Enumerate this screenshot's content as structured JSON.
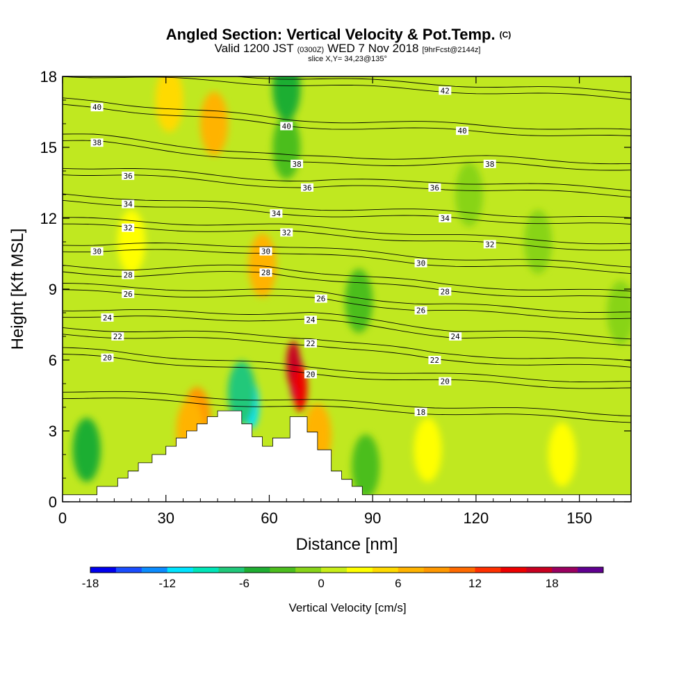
{
  "title": {
    "main": "Angled Section: Vertical Velocity & Pot.Temp.",
    "copyright": "(C)",
    "valid_prefix": "Valid 1200 JST",
    "utc": "(0300Z)",
    "valid_date": "WED 7 Nov 2018",
    "forecast": "[9hrFcst@2144z]",
    "slice": "slice X,Y= 34,23@135°"
  },
  "chart_data": {
    "type": "heatmap",
    "xlabel": "Distance [nm]",
    "ylabel": "Height [Kft MSL]",
    "xlim": [
      0,
      165
    ],
    "ylim": [
      0,
      18
    ],
    "xticks": [
      0,
      30,
      60,
      90,
      120,
      150
    ],
    "yticks": [
      0,
      3,
      6,
      9,
      12,
      15,
      18
    ],
    "colorbar": {
      "label": "Vertical Velocity [cm/s]",
      "min": -18,
      "max": 22,
      "step": 2,
      "ticks": [
        -18,
        -12,
        -6,
        0,
        6,
        12,
        18
      ],
      "colors": [
        "#0000ee",
        "#1a4dff",
        "#0b8cff",
        "#00e4ff",
        "#00e6b8",
        "#20c87a",
        "#1fae32",
        "#4cbe1e",
        "#88d418",
        "#c8ee18",
        "#ffff00",
        "#ffda00",
        "#ffb300",
        "#ff9800",
        "#ff6a00",
        "#ff3000",
        "#ee0000",
        "#c80020",
        "#9a0060",
        "#600090"
      ]
    },
    "terrain_top_kft": [
      [
        0,
        0.3
      ],
      [
        10,
        0.65
      ],
      [
        16,
        1.0
      ],
      [
        19,
        1.3
      ],
      [
        22,
        1.65
      ],
      [
        26,
        2.0
      ],
      [
        30,
        2.35
      ],
      [
        33,
        2.7
      ],
      [
        36,
        3.0
      ],
      [
        39,
        3.3
      ],
      [
        42,
        3.6
      ],
      [
        45,
        3.85
      ],
      [
        50,
        3.85
      ],
      [
        52,
        3.3
      ],
      [
        55,
        2.75
      ],
      [
        58,
        2.35
      ],
      [
        61,
        2.7
      ],
      [
        66,
        3.6
      ],
      [
        71,
        2.95
      ],
      [
        74,
        2.2
      ],
      [
        78,
        1.3
      ],
      [
        81,
        0.95
      ],
      [
        84,
        0.65
      ],
      [
        87,
        0.3
      ],
      [
        165,
        0.3
      ]
    ],
    "vertical_velocity_features": [
      {
        "x": 68,
        "y": 5.2,
        "value": 18
      },
      {
        "x": 67,
        "y": 5.8,
        "value": 16
      },
      {
        "x": 69,
        "y": 4.8,
        "value": 14
      },
      {
        "x": 55,
        "y": 4.1,
        "value": -12
      },
      {
        "x": 52,
        "y": 4.6,
        "value": -8
      },
      {
        "x": 39,
        "y": 3.5,
        "value": 8
      },
      {
        "x": 37,
        "y": 3.0,
        "value": 6
      },
      {
        "x": 74,
        "y": 2.8,
        "value": 6
      },
      {
        "x": 58,
        "y": 10.0,
        "value": 6
      },
      {
        "x": 44,
        "y": 16.0,
        "value": 6
      },
      {
        "x": 31,
        "y": 17.0,
        "value": 4
      },
      {
        "x": 7,
        "y": 2.2,
        "value": -6
      },
      {
        "x": 65,
        "y": 15.0,
        "value": -4
      },
      {
        "x": 65,
        "y": 17.5,
        "value": -6
      },
      {
        "x": 88,
        "y": 1.5,
        "value": -3
      },
      {
        "x": 86,
        "y": 8.5,
        "value": -3
      },
      {
        "x": 106,
        "y": 2.2,
        "value": 3
      },
      {
        "x": 138,
        "y": 11.0,
        "value": -2
      },
      {
        "x": 118,
        "y": 13.0,
        "value": -2
      },
      {
        "x": 145,
        "y": 2.0,
        "value": 3
      },
      {
        "x": 20,
        "y": 11.0,
        "value": 3
      },
      {
        "x": 162,
        "y": 8.0,
        "value": -2
      }
    ],
    "isotherm_labels": [
      {
        "value": "42",
        "x": 111,
        "y": 17.4
      },
      {
        "value": "40",
        "x": 10,
        "y": 16.7
      },
      {
        "value": "40",
        "x": 65,
        "y": 15.9
      },
      {
        "value": "40",
        "x": 116,
        "y": 15.7
      },
      {
        "value": "38",
        "x": 10,
        "y": 15.2
      },
      {
        "value": "38",
        "x": 68,
        "y": 14.3
      },
      {
        "value": "38",
        "x": 124,
        "y": 14.3
      },
      {
        "value": "36",
        "x": 19,
        "y": 13.8
      },
      {
        "value": "36",
        "x": 71,
        "y": 13.3
      },
      {
        "value": "36",
        "x": 108,
        "y": 13.3
      },
      {
        "value": "34",
        "x": 19,
        "y": 12.6
      },
      {
        "value": "34",
        "x": 62,
        "y": 12.2
      },
      {
        "value": "34",
        "x": 111,
        "y": 12.0
      },
      {
        "value": "32",
        "x": 19,
        "y": 11.6
      },
      {
        "value": "32",
        "x": 65,
        "y": 11.4
      },
      {
        "value": "32",
        "x": 124,
        "y": 10.9
      },
      {
        "value": "30",
        "x": 10,
        "y": 10.6
      },
      {
        "value": "30",
        "x": 59,
        "y": 10.6
      },
      {
        "value": "30",
        "x": 104,
        "y": 10.1
      },
      {
        "value": "28",
        "x": 19,
        "y": 9.6
      },
      {
        "value": "28",
        "x": 59,
        "y": 9.7
      },
      {
        "value": "28",
        "x": 111,
        "y": 8.9
      },
      {
        "value": "26",
        "x": 19,
        "y": 8.8
      },
      {
        "value": "26",
        "x": 75,
        "y": 8.6
      },
      {
        "value": "26",
        "x": 104,
        "y": 8.1
      },
      {
        "value": "24",
        "x": 13,
        "y": 7.8
      },
      {
        "value": "24",
        "x": 72,
        "y": 7.7
      },
      {
        "value": "24",
        "x": 114,
        "y": 7.0
      },
      {
        "value": "22",
        "x": 16,
        "y": 7.0
      },
      {
        "value": "22",
        "x": 72,
        "y": 6.7
      },
      {
        "value": "22",
        "x": 108,
        "y": 6.0
      },
      {
        "value": "20",
        "x": 13,
        "y": 6.1
      },
      {
        "value": "20",
        "x": 72,
        "y": 5.4
      },
      {
        "value": "20",
        "x": 111,
        "y": 5.1
      },
      {
        "value": "18",
        "x": 104,
        "y": 3.8
      }
    ]
  }
}
